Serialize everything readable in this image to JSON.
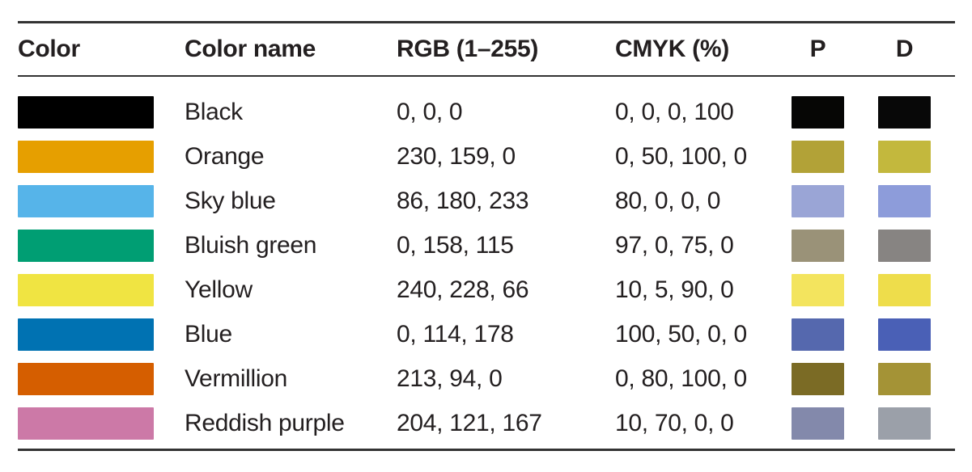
{
  "chart_data": {
    "type": "table",
    "columns": [
      "Color",
      "Color name",
      "RGB (1–255)",
      "CMYK (%)",
      "P",
      "D"
    ],
    "rows": [
      {
        "name": "Black",
        "rgb": "0, 0, 0",
        "cmyk": "0, 0, 0, 100",
        "hex": "#000000",
        "p_hex": "#060605",
        "d_hex": "#080808"
      },
      {
        "name": "Orange",
        "rgb": "230, 159, 0",
        "cmyk": "0, 50, 100, 0",
        "hex": "#E69F00",
        "p_hex": "#B2A237",
        "d_hex": "#C3B83D"
      },
      {
        "name": "Sky blue",
        "rgb": "86, 180, 233",
        "cmyk": "80, 0, 0, 0",
        "hex": "#56B4E9",
        "p_hex": "#9AA5D6",
        "d_hex": "#8D9CDA"
      },
      {
        "name": "Bluish green",
        "rgb": "0, 158, 115",
        "cmyk": "97, 0, 75, 0",
        "hex": "#009E73",
        "p_hex": "#9A9278",
        "d_hex": "#878482"
      },
      {
        "name": "Yellow",
        "rgb": "240, 228, 66",
        "cmyk": "10, 5, 90, 0",
        "hex": "#F0E442",
        "p_hex": "#F3E45E",
        "d_hex": "#EEDD4B"
      },
      {
        "name": "Blue",
        "rgb": "0, 114, 178",
        "cmyk": "100, 50, 0, 0",
        "hex": "#0072B2",
        "p_hex": "#5568AE",
        "d_hex": "#4A60B6"
      },
      {
        "name": "Vermillion",
        "rgb": "213, 94, 0",
        "cmyk": "0, 80, 100, 0",
        "hex": "#D55E00",
        "p_hex": "#7B6B25",
        "d_hex": "#A49336"
      },
      {
        "name": "Reddish purple",
        "rgb": "204, 121, 167",
        "cmyk": "10, 70, 0, 0",
        "hex": "#CC79A7",
        "p_hex": "#8389AB",
        "d_hex": "#9BA0A9"
      }
    ]
  },
  "colors": {
    "text": "#231f20",
    "rule": "#333333",
    "background": "#ffffff"
  }
}
